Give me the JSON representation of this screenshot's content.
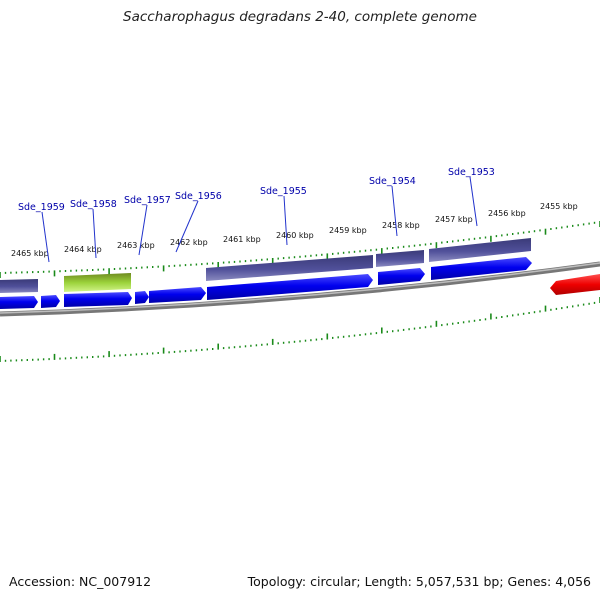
{
  "title": "Saccharophagus degradans 2-40, complete genome",
  "footer": {
    "accession": "Accession: NC_007912",
    "summary": "Topology: circular; Length: 5,057,531 bp; Genes: 4,056"
  },
  "colors": {
    "ruler_ticks": "#1a8a1a",
    "backbone": "#8a8a8a",
    "plus_strand": "#0000ee",
    "minus_strand": "#4a4a8c",
    "rna": "#8fcf2f",
    "reverse_red": "#ff1a1a",
    "label_blue": "#0000aa",
    "leader_blue": "#2233cc"
  },
  "scale_labels": [
    {
      "kbp": 2465,
      "label": "2465 kbp"
    },
    {
      "kbp": 2464,
      "label": "2464 kbp"
    },
    {
      "kbp": 2463,
      "label": "2463 kbp"
    },
    {
      "kbp": 2462,
      "label": "2462 kbp"
    },
    {
      "kbp": 2461,
      "label": "2461 kbp"
    },
    {
      "kbp": 2460,
      "label": "2460 kbp"
    },
    {
      "kbp": 2459,
      "label": "2459 kbp"
    },
    {
      "kbp": 2458,
      "label": "2458 kbp"
    },
    {
      "kbp": 2457,
      "label": "2457 kbp"
    },
    {
      "kbp": 2456,
      "label": "2456 kbp"
    },
    {
      "kbp": 2455,
      "label": "2455 kbp"
    }
  ],
  "gene_labels": [
    {
      "name": "Sde_1959"
    },
    {
      "name": "Sde_1958"
    },
    {
      "name": "Sde_1957"
    },
    {
      "name": "Sde_1956"
    },
    {
      "name": "Sde_1955"
    },
    {
      "name": "Sde_1954"
    },
    {
      "name": "Sde_1953"
    }
  ]
}
